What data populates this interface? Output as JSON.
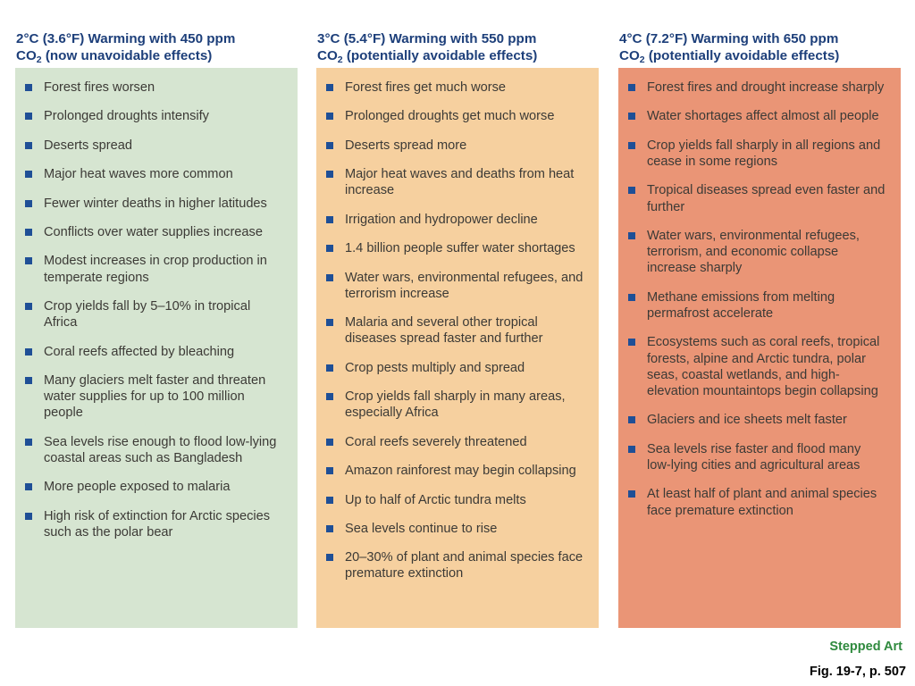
{
  "columns": [
    {
      "title_pre": "2°C (3.6°F) Warming with 450 ppm",
      "title_co": "CO",
      "title_sub": "2",
      "title_post": " (now unavoidable effects)",
      "bg_color": "#d6e5d1",
      "items": [
        "Forest fires worsen",
        "Prolonged droughts intensify",
        "Deserts spread",
        "Major heat waves more common",
        "Fewer winter deaths in higher latitudes",
        "Conflicts over water supplies increase",
        "Modest increases in crop production in temperate regions",
        "Crop yields fall by 5–10% in tropical Africa",
        "Coral reefs affected by bleaching",
        "Many glaciers melt faster and threaten water supplies for up to 100 million people",
        "Sea levels rise enough to flood low-lying coastal areas such as Bangladesh",
        "More people exposed to malaria",
        "High risk of extinction for Arctic species such as the polar bear"
      ]
    },
    {
      "title_pre": "3°C (5.4°F) Warming with 550 ppm",
      "title_co": "CO",
      "title_sub": "2",
      "title_post": " (potentially avoidable effects)",
      "bg_color": "#f6d09f",
      "items": [
        "Forest fires get much worse",
        "Prolonged droughts get much worse",
        "Deserts spread more",
        "Major heat waves and deaths from heat increase",
        "Irrigation and hydropower decline",
        "1.4 billion people suffer water shortages",
        "Water wars, environmental refugees, and terrorism increase",
        "Malaria and several other tropical diseases spread faster and further",
        "Crop pests multiply and spread",
        "Crop yields fall sharply in many areas, especially Africa",
        "Coral reefs severely threatened",
        "Amazon rainforest may begin collapsing",
        "Up to half of Arctic tundra melts",
        "Sea levels continue to rise",
        "20–30% of plant and animal species face premature extinction"
      ]
    },
    {
      "title_pre": "4°C (7.2°F) Warming with 650 ppm",
      "title_co": "CO",
      "title_sub": "2",
      "title_post": " (potentially avoidable effects)",
      "bg_color": "#ea9576",
      "items": [
        "Forest fires and drought increase sharply",
        "Water shortages affect almost all people",
        "Crop yields fall sharply in all regions and cease in some regions",
        "Tropical diseases spread even faster and further",
        "Water wars, environmental refugees, terrorism, and economic collapse increase sharply",
        "Methane emissions from melting permafrost accelerate",
        "Ecosystems such as coral reefs, tropical forests, alpine and Arctic tundra, polar seas, coastal wetlands, and high-elevation mountaintops begin collapsing",
        "Glaciers and ice sheets melt faster",
        "Sea levels rise faster and flood many low-lying cities and agricultural areas",
        "At least half of plant and animal species face premature extinction"
      ]
    }
  ],
  "footer": {
    "stepped": "Stepped Art",
    "fig": "Fig. 19-7, p. 507"
  },
  "colors": {
    "header_text": "#1d3f7a",
    "bullet": "#1f4f96",
    "stepped_text": "#2f8a3e"
  }
}
